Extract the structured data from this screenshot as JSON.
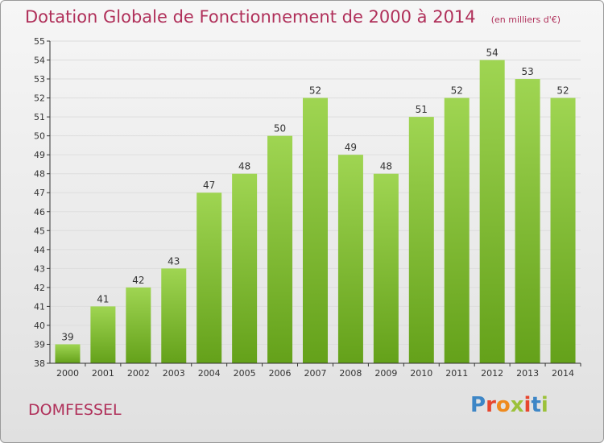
{
  "header": {
    "title": "Dotation Globale de Fonctionnement de 2000 à 2014",
    "subtitle": "(en milliers d'€)"
  },
  "footer": {
    "commune": "DOMFESSEL",
    "logo_text": "Proxiti"
  },
  "colors": {
    "title": "#b0305a",
    "bar_light": "#9fd552",
    "bar_dark": "#64a11a",
    "grid": "#dddddd",
    "axis": "#333333"
  },
  "chart_data": {
    "type": "bar",
    "categories": [
      "2000",
      "2001",
      "2002",
      "2003",
      "2004",
      "2005",
      "2006",
      "2007",
      "2008",
      "2009",
      "2010",
      "2011",
      "2012",
      "2013",
      "2014"
    ],
    "values": [
      39,
      41,
      42,
      43,
      47,
      48,
      50,
      52,
      49,
      48,
      51,
      52,
      54,
      53,
      52
    ],
    "data_labels": [
      "39",
      "41",
      "42",
      "43",
      "47",
      "48",
      "50",
      "52",
      "49",
      "48",
      "51",
      "52",
      "54",
      "53",
      "52"
    ],
    "y_ticks": [
      38,
      39,
      40,
      41,
      42,
      43,
      44,
      45,
      46,
      47,
      48,
      49,
      50,
      51,
      52,
      53,
      54,
      55
    ],
    "ylim": [
      38,
      55
    ],
    "title": "Dotation Globale de Fonctionnement de 2000 à 2014",
    "subtitle": "(en milliers d'€)",
    "xlabel": "",
    "ylabel": "",
    "grid": true
  }
}
